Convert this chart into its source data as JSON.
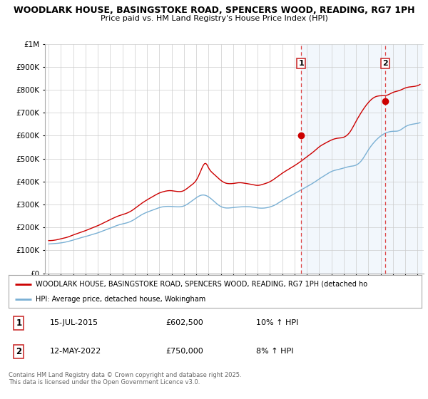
{
  "title": "WOODLARK HOUSE, BASINGSTOKE ROAD, SPENCERS WOOD, READING, RG7 1PH",
  "subtitle": "Price paid vs. HM Land Registry's House Price Index (HPI)",
  "ylim": [
    0,
    1000000
  ],
  "yticks": [
    0,
    100000,
    200000,
    300000,
    400000,
    500000,
    600000,
    700000,
    800000,
    900000,
    1000000
  ],
  "ytick_labels": [
    "£0",
    "£100K",
    "£200K",
    "£300K",
    "£400K",
    "£500K",
    "£600K",
    "£700K",
    "£800K",
    "£900K",
    "£1M"
  ],
  "sale1_date": "15-JUL-2015",
  "sale1_price": 602500,
  "sale1_hpi": "10% ↑ HPI",
  "sale2_date": "12-MAY-2022",
  "sale2_price": 750000,
  "sale2_hpi": "8% ↑ HPI",
  "sale1_x": 2015.54,
  "sale2_x": 2022.37,
  "legend_line1": "WOODLARK HOUSE, BASINGSTOKE ROAD, SPENCERS WOOD, READING, RG7 1PH (detached ho",
  "legend_line2": "HPI: Average price, detached house, Wokingham",
  "footer": "Contains HM Land Registry data © Crown copyright and database right 2025.\nThis data is licensed under the Open Government Licence v3.0.",
  "line_color_red": "#cc0000",
  "line_color_blue": "#7ab0d4",
  "fill_color": "#ddeeff",
  "vline_color": "#dd4444",
  "background_color": "#ffffff",
  "grid_color": "#cccccc",
  "hpi_anchor_years": [
    1995.0,
    1995.5,
    1996.0,
    1996.5,
    1997.0,
    1997.5,
    1998.0,
    1998.5,
    1999.0,
    1999.5,
    2000.0,
    2000.5,
    2001.0,
    2001.5,
    2002.0,
    2002.5,
    2003.0,
    2003.5,
    2004.0,
    2004.5,
    2005.0,
    2005.5,
    2006.0,
    2006.5,
    2007.0,
    2007.5,
    2008.0,
    2008.5,
    2009.0,
    2009.5,
    2010.0,
    2010.5,
    2011.0,
    2011.5,
    2012.0,
    2012.5,
    2013.0,
    2013.5,
    2014.0,
    2014.5,
    2015.0,
    2015.5,
    2016.0,
    2016.5,
    2017.0,
    2017.5,
    2018.0,
    2018.5,
    2019.0,
    2019.5,
    2020.0,
    2020.5,
    2021.0,
    2021.5,
    2022.0,
    2022.5,
    2023.0,
    2023.5,
    2024.0,
    2024.5,
    2025.0
  ],
  "hpi_anchor_vals": [
    128000,
    130000,
    133000,
    138000,
    145000,
    153000,
    160000,
    168000,
    176000,
    186000,
    196000,
    207000,
    215000,
    222000,
    235000,
    252000,
    265000,
    275000,
    285000,
    290000,
    290000,
    288000,
    292000,
    308000,
    328000,
    340000,
    332000,
    310000,
    290000,
    283000,
    285000,
    287000,
    288000,
    287000,
    283000,
    282000,
    287000,
    298000,
    315000,
    330000,
    345000,
    360000,
    375000,
    390000,
    408000,
    425000,
    440000,
    448000,
    455000,
    462000,
    468000,
    492000,
    535000,
    570000,
    595000,
    610000,
    615000,
    618000,
    635000,
    645000,
    650000
  ],
  "price_anchor_years": [
    1995.0,
    1995.5,
    1996.0,
    1996.5,
    1997.0,
    1997.5,
    1998.0,
    1998.5,
    1999.0,
    1999.5,
    2000.0,
    2000.5,
    2001.0,
    2001.5,
    2002.0,
    2002.5,
    2003.0,
    2003.5,
    2004.0,
    2004.5,
    2005.0,
    2005.5,
    2006.0,
    2006.5,
    2007.0,
    2007.3,
    2007.5,
    2007.8,
    2008.0,
    2008.5,
    2009.0,
    2009.5,
    2010.0,
    2010.5,
    2011.0,
    2011.5,
    2012.0,
    2012.5,
    2013.0,
    2013.5,
    2014.0,
    2014.5,
    2015.0,
    2015.5,
    2016.0,
    2016.5,
    2017.0,
    2017.5,
    2018.0,
    2018.5,
    2019.0,
    2019.5,
    2020.0,
    2020.5,
    2021.0,
    2021.5,
    2022.0,
    2022.5,
    2023.0,
    2023.5,
    2024.0,
    2024.5,
    2025.0
  ],
  "price_anchor_vals": [
    143000,
    146000,
    152000,
    158000,
    168000,
    178000,
    188000,
    200000,
    210000,
    222000,
    235000,
    248000,
    258000,
    268000,
    285000,
    305000,
    322000,
    338000,
    352000,
    360000,
    362000,
    358000,
    362000,
    382000,
    408000,
    440000,
    465000,
    480000,
    462000,
    432000,
    408000,
    395000,
    395000,
    398000,
    395000,
    390000,
    385000,
    390000,
    400000,
    418000,
    438000,
    455000,
    472000,
    490000,
    510000,
    530000,
    552000,
    568000,
    582000,
    590000,
    595000,
    618000,
    665000,
    710000,
    745000,
    768000,
    775000,
    778000,
    790000,
    798000,
    810000,
    815000,
    820000
  ]
}
